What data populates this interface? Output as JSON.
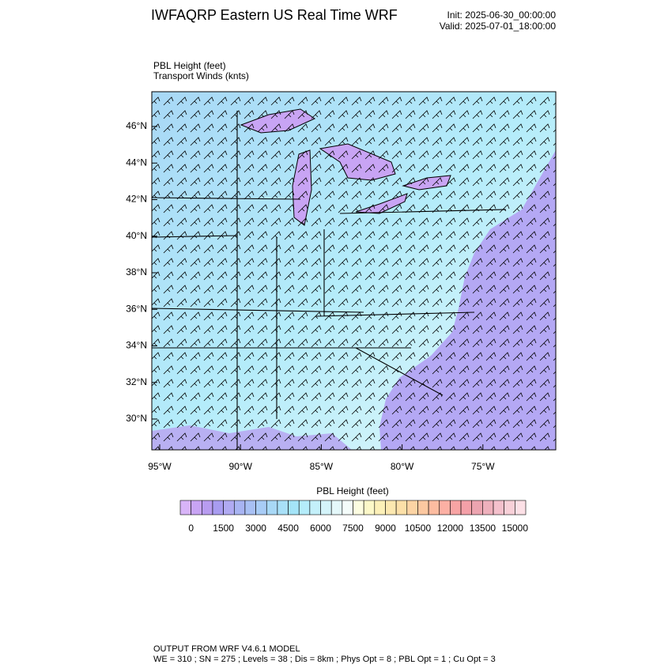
{
  "header": {
    "title": "IWFAQRP Eastern US Real Time WRF",
    "init": "Init: 2025-06-30_00:00:00",
    "valid": "Valid: 2025-07-01_18:00:00"
  },
  "field_labels": [
    "PBL Height   (feet)",
    "Transport Winds   (knts)"
  ],
  "lat_labels": [
    "46°N",
    "44°N",
    "42°N",
    "40°N",
    "38°N",
    "36°N",
    "34°N",
    "32°N",
    "30°N"
  ],
  "lon_labels": [
    "95°W",
    "90°W",
    "85°W",
    "80°W",
    "75°W"
  ],
  "colorbar": {
    "title": "PBL Height  (feet)",
    "labels": [
      "0",
      "1500",
      "3000",
      "4500",
      "6000",
      "7500",
      "9000",
      "10500",
      "12000",
      "13500",
      "15000"
    ],
    "colors": [
      "#d8b4f8",
      "#c8a4f4",
      "#b89cf0",
      "#a89cf0",
      "#b0aaf2",
      "#a8b4f2",
      "#a8c0f4",
      "#a8ccf6",
      "#a8d8f6",
      "#a8e0f8",
      "#a4e4f8",
      "#b4ecfa",
      "#c4f0fa",
      "#d4f4fa",
      "#e4f8fa",
      "#f4fcfa",
      "#fcfce0",
      "#fcf8c8",
      "#fcf0b8",
      "#fce8b0",
      "#fce0a8",
      "#fcd4a4",
      "#fcc8a0",
      "#fcbca0",
      "#fcb0a4",
      "#f8a4a4",
      "#f4a0a8",
      "#eca4b0",
      "#eeb0bc",
      "#f4c0cc",
      "#f8d0d8",
      "#fce0e6"
    ]
  },
  "footer": [
    "OUTPUT FROM WRF V4.6.1 MODEL",
    "WE = 310 ; SN = 275 ; Levels = 38 ; Dis = 8km ; Phys Opt = 8 ; PBL Opt = 1 ; Cu Opt = 3"
  ]
}
